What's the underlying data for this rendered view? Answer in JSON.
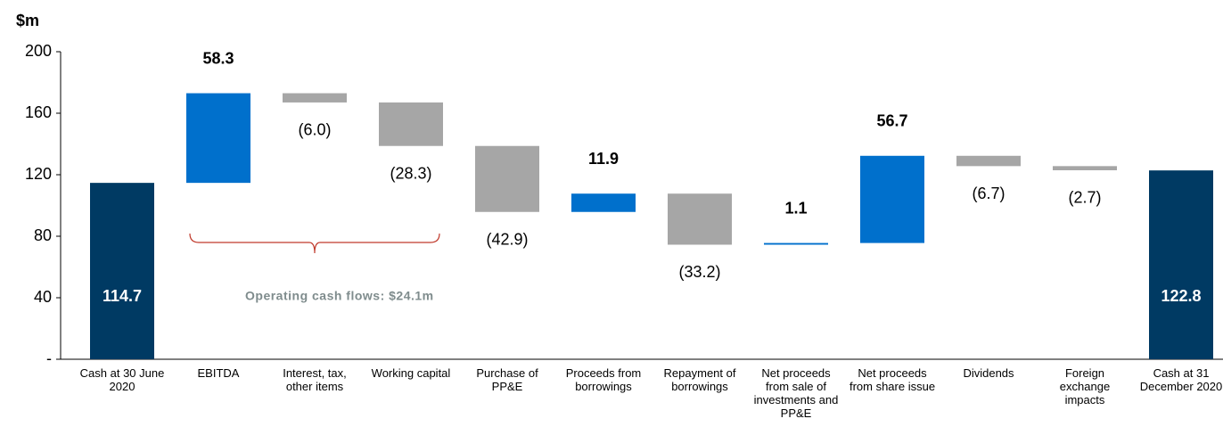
{
  "chart_data": {
    "type": "waterfall",
    "y_label": "$m",
    "categories": [
      "Cash at 30 June 2020",
      "EBITDA",
      "Interest, tax, other items",
      "Working capital",
      "Purchase of PP&E",
      "Proceeds from borrowings",
      "Repayment of borrowings",
      "Net proceeds from sale of investments and PP&E",
      "Net proceeds from share issue",
      "Dividends",
      "Foreign exchange impacts",
      "Cash at 31 December 2020"
    ],
    "values": [
      114.7,
      58.3,
      -6.0,
      -28.3,
      -42.9,
      11.9,
      -33.2,
      1.1,
      56.7,
      -6.7,
      -2.7,
      122.8
    ],
    "value_labels": [
      "114.7",
      "58.3",
      "(6.0)",
      "(28.3)",
      "(42.9)",
      "11.9",
      "(33.2)",
      "1.1",
      "56.7",
      "(6.7)",
      "(2.7)",
      "122.8"
    ],
    "measure": [
      "total",
      "relative",
      "relative",
      "relative",
      "relative",
      "relative",
      "relative",
      "relative",
      "relative",
      "relative",
      "relative",
      "total"
    ],
    "colors": {
      "total": "#003a63",
      "increase": "#0070cc",
      "decrease": "#a6a6a6"
    },
    "ylim": [
      0,
      200
    ],
    "yticks": [
      {
        "value": 0,
        "label": "-"
      },
      40,
      80,
      120,
      160,
      200
    ],
    "annotation": "Operating cash flows: $24.1m"
  }
}
